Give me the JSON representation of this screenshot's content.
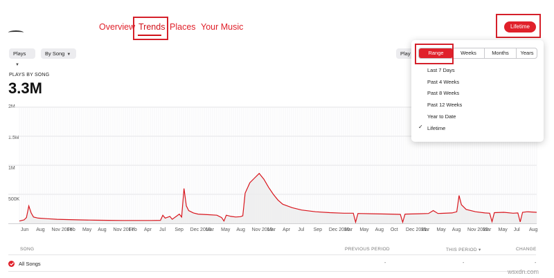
{
  "nav": {
    "tabs": [
      {
        "label": "Overview"
      },
      {
        "label": "Trends"
      },
      {
        "label": "Places"
      },
      {
        "label": "Your Music"
      }
    ],
    "active_tab": "Trends"
  },
  "range_button": {
    "label": "Lifetime"
  },
  "filters": {
    "metric": "Plays",
    "grouping": "By Song",
    "right_partial": "Play"
  },
  "headline": {
    "label": "PLAYS BY SONG",
    "value": "3.3M"
  },
  "dropdown": {
    "segments": [
      "Range",
      "Weeks",
      "Months",
      "Years"
    ],
    "active_segment": "Range",
    "options": [
      "Last 7 Days",
      "Past 4 Weeks",
      "Past 8 Weeks",
      "Past 12 Weeks",
      "Year to Date",
      "Lifetime"
    ],
    "selected_option": "Lifetime"
  },
  "chart_data": {
    "type": "area",
    "title": "",
    "ylabel": "",
    "xlabel": "",
    "y_ticks": [
      "2M",
      "1.5M",
      "1M",
      "500K"
    ],
    "ylim": [
      0,
      2000000
    ],
    "x_labels": [
      "Jun",
      "Aug",
      "Nov 2016",
      "Feb",
      "May",
      "Aug",
      "Nov 2017",
      "Feb",
      "Apr",
      "Jul",
      "Sep",
      "Dec 2018",
      "Mar",
      "May",
      "Aug",
      "Nov 2019",
      "Mar",
      "Apr",
      "Jul",
      "Sep",
      "Dec 2020",
      "Mar",
      "May",
      "Aug",
      "Oct",
      "Dec 2021",
      "Mar",
      "May",
      "Aug",
      "Nov 2022",
      "Mar",
      "May",
      "Jul",
      "Aug"
    ],
    "series": [
      {
        "color": "#d8141c",
        "points": [
          [
            0,
            40000
          ],
          [
            2,
            60000
          ],
          [
            3,
            100000
          ],
          [
            4,
            300000
          ],
          [
            5,
            180000
          ],
          [
            6,
            110000
          ],
          [
            8,
            90000
          ],
          [
            12,
            80000
          ],
          [
            16,
            70000
          ],
          [
            20,
            65000
          ],
          [
            26,
            60000
          ],
          [
            32,
            55000
          ],
          [
            38,
            52000
          ],
          [
            44,
            50000
          ],
          [
            50,
            50000
          ],
          [
            56,
            50000
          ],
          [
            60,
            52000
          ],
          [
            61,
            140000
          ],
          [
            62,
            90000
          ],
          [
            64,
            120000
          ],
          [
            65,
            70000
          ],
          [
            68,
            160000
          ],
          [
            69,
            110000
          ],
          [
            70,
            600000
          ],
          [
            71,
            300000
          ],
          [
            72,
            220000
          ],
          [
            74,
            180000
          ],
          [
            76,
            160000
          ],
          [
            80,
            150000
          ],
          [
            84,
            140000
          ],
          [
            86,
            100000
          ],
          [
            87,
            40000
          ],
          [
            88,
            140000
          ],
          [
            90,
            120000
          ],
          [
            92,
            110000
          ],
          [
            94,
            115000
          ],
          [
            95,
            130000
          ],
          [
            96,
            520000
          ],
          [
            98,
            700000
          ],
          [
            100,
            780000
          ],
          [
            102,
            860000
          ],
          [
            104,
            760000
          ],
          [
            106,
            620000
          ],
          [
            108,
            500000
          ],
          [
            110,
            400000
          ],
          [
            112,
            330000
          ],
          [
            116,
            270000
          ],
          [
            120,
            230000
          ],
          [
            126,
            200000
          ],
          [
            132,
            185000
          ],
          [
            138,
            175000
          ],
          [
            142,
            175000
          ],
          [
            143,
            20000
          ],
          [
            144,
            170000
          ],
          [
            150,
            165000
          ],
          [
            158,
            160000
          ],
          [
            162,
            155000
          ],
          [
            163,
            20000
          ],
          [
            164,
            160000
          ],
          [
            170,
            165000
          ],
          [
            174,
            170000
          ],
          [
            176,
            220000
          ],
          [
            178,
            170000
          ],
          [
            184,
            180000
          ],
          [
            186,
            200000
          ],
          [
            187,
            480000
          ],
          [
            188,
            320000
          ],
          [
            190,
            240000
          ],
          [
            194,
            200000
          ],
          [
            198,
            180000
          ],
          [
            200,
            175000
          ],
          [
            201,
            30000
          ],
          [
            202,
            185000
          ],
          [
            206,
            190000
          ],
          [
            210,
            175000
          ],
          [
            212,
            180000
          ],
          [
            213,
            25000
          ],
          [
            214,
            190000
          ],
          [
            216,
            200000
          ],
          [
            220,
            190000
          ]
        ]
      }
    ],
    "grid": true
  },
  "table": {
    "columns": [
      "SONG",
      "PREVIOUS PERIOD",
      "THIS PERIOD",
      "CHANGE"
    ],
    "sort_indicator": "THIS PERIOD",
    "rows": [
      {
        "song": "All Songs",
        "previous": "-",
        "this": "-",
        "change": "-"
      }
    ]
  },
  "watermark": "wsxdn.com"
}
